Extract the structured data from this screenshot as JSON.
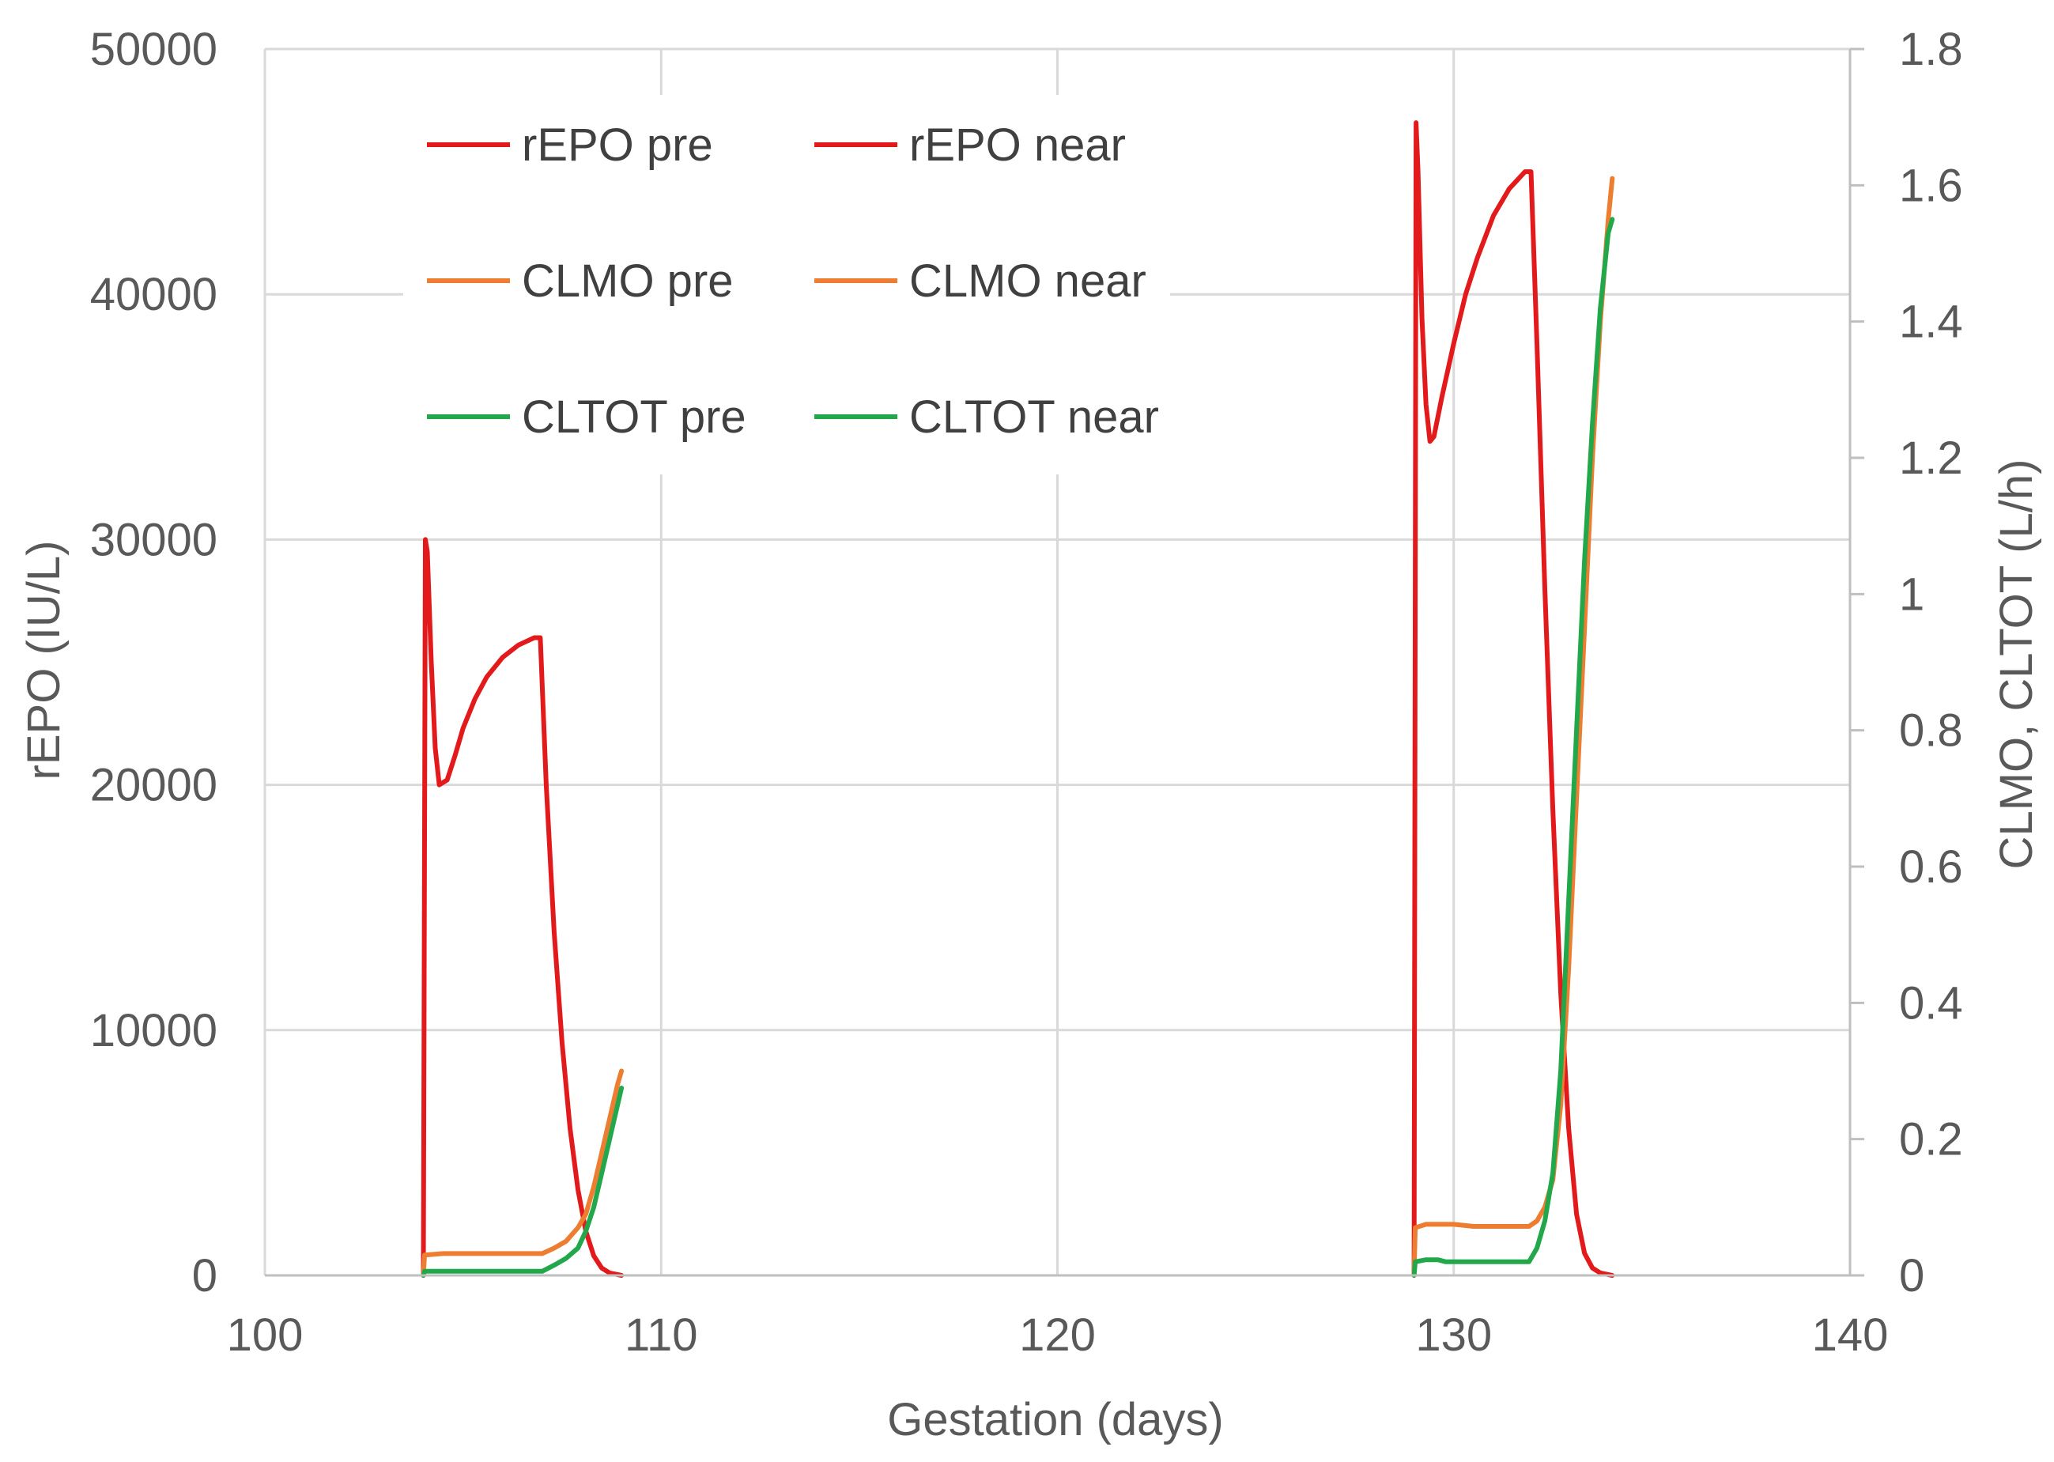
{
  "chart_data": {
    "type": "line",
    "xlabel": "Gestation (days)",
    "ylabel": "rEPO (IU/L)",
    "y2label": "CLMO, CLTOT (L/h)",
    "xlim": [
      100,
      140
    ],
    "ylim": [
      0,
      50000
    ],
    "y2lim": [
      0,
      1.8
    ],
    "xticks": [
      100,
      110,
      120,
      130,
      140
    ],
    "yticks": [
      0,
      10000,
      20000,
      30000,
      40000,
      50000
    ],
    "y2ticks": [
      0,
      0.2,
      0.4,
      0.6,
      0.8,
      1,
      1.2,
      1.4,
      1.6,
      1.8
    ],
    "grid": true,
    "legend_placement": "top-left",
    "series": [
      {
        "name": "rEPO pre",
        "axis": "left",
        "color": "#e31a1c",
        "x": [
          104,
          104.05,
          104.1,
          104.2,
          104.3,
          104.4,
          104.6,
          104.8,
          105.0,
          105.3,
          105.6,
          106.0,
          106.4,
          106.8,
          106.95,
          107.1,
          107.3,
          107.5,
          107.7,
          107.9,
          108.1,
          108.3,
          108.5,
          108.7,
          109.0
        ],
        "y": [
          0,
          30000,
          29500,
          25000,
          21500,
          20000,
          20200,
          21200,
          22300,
          23500,
          24400,
          25200,
          25700,
          26000,
          26000,
          20000,
          14000,
          9500,
          6000,
          3500,
          1800,
          800,
          300,
          100,
          0
        ]
      },
      {
        "name": "rEPO near",
        "axis": "left",
        "color": "#e31a1c",
        "x": [
          129,
          129.05,
          129.1,
          129.2,
          129.3,
          129.4,
          129.5,
          129.7,
          130.0,
          130.3,
          130.6,
          131.0,
          131.4,
          131.8,
          131.95,
          132.1,
          132.3,
          132.5,
          132.7,
          132.9,
          133.1,
          133.3,
          133.5,
          133.7,
          134.0
        ],
        "y": [
          0,
          47000,
          45000,
          39000,
          35500,
          34000,
          34200,
          35800,
          38000,
          40000,
          41500,
          43200,
          44300,
          45000,
          45000,
          38000,
          28000,
          19000,
          11500,
          6000,
          2500,
          900,
          300,
          100,
          0
        ]
      },
      {
        "name": "CLMO pre",
        "axis": "right",
        "color": "#ed7d31",
        "x": [
          104,
          104.03,
          104.5,
          105.5,
          106.5,
          107.0,
          107.3,
          107.6,
          107.9,
          108.1,
          108.3,
          108.5,
          108.7,
          108.9,
          109.0
        ],
        "y": [
          0,
          0.03,
          0.032,
          0.032,
          0.032,
          0.032,
          0.04,
          0.05,
          0.07,
          0.09,
          0.13,
          0.18,
          0.23,
          0.28,
          0.3
        ]
      },
      {
        "name": "CLMO near",
        "axis": "right",
        "color": "#ed7d31",
        "x": [
          129,
          129.03,
          129.3,
          129.6,
          130.0,
          130.5,
          131.0,
          131.5,
          131.9,
          132.1,
          132.3,
          132.5,
          132.7,
          132.9,
          133.1,
          133.3,
          133.5,
          133.7,
          133.9,
          134.0
        ],
        "y": [
          0,
          0.07,
          0.075,
          0.075,
          0.075,
          0.072,
          0.072,
          0.072,
          0.072,
          0.08,
          0.1,
          0.14,
          0.25,
          0.45,
          0.7,
          0.95,
          1.2,
          1.4,
          1.55,
          1.61
        ]
      },
      {
        "name": "CLTOT pre",
        "axis": "right",
        "color": "#22a84a",
        "x": [
          104,
          104.03,
          104.5,
          105.5,
          106.5,
          107.0,
          107.3,
          107.6,
          107.9,
          108.1,
          108.3,
          108.5,
          108.7,
          108.9,
          109.0
        ],
        "y": [
          0,
          0.006,
          0.006,
          0.006,
          0.006,
          0.006,
          0.015,
          0.025,
          0.04,
          0.065,
          0.1,
          0.15,
          0.2,
          0.25,
          0.275
        ]
      },
      {
        "name": "CLTOT near",
        "axis": "right",
        "color": "#22a84a",
        "x": [
          129,
          129.03,
          129.3,
          129.6,
          129.8,
          130.0,
          130.5,
          131.0,
          131.5,
          131.9,
          132.1,
          132.3,
          132.5,
          132.7,
          132.9,
          133.1,
          133.3,
          133.5,
          133.7,
          133.9,
          134.0
        ],
        "y": [
          0,
          0.02,
          0.023,
          0.023,
          0.02,
          0.02,
          0.02,
          0.02,
          0.02,
          0.02,
          0.04,
          0.08,
          0.15,
          0.3,
          0.55,
          0.8,
          1.05,
          1.25,
          1.42,
          1.53,
          1.55
        ]
      }
    ]
  }
}
